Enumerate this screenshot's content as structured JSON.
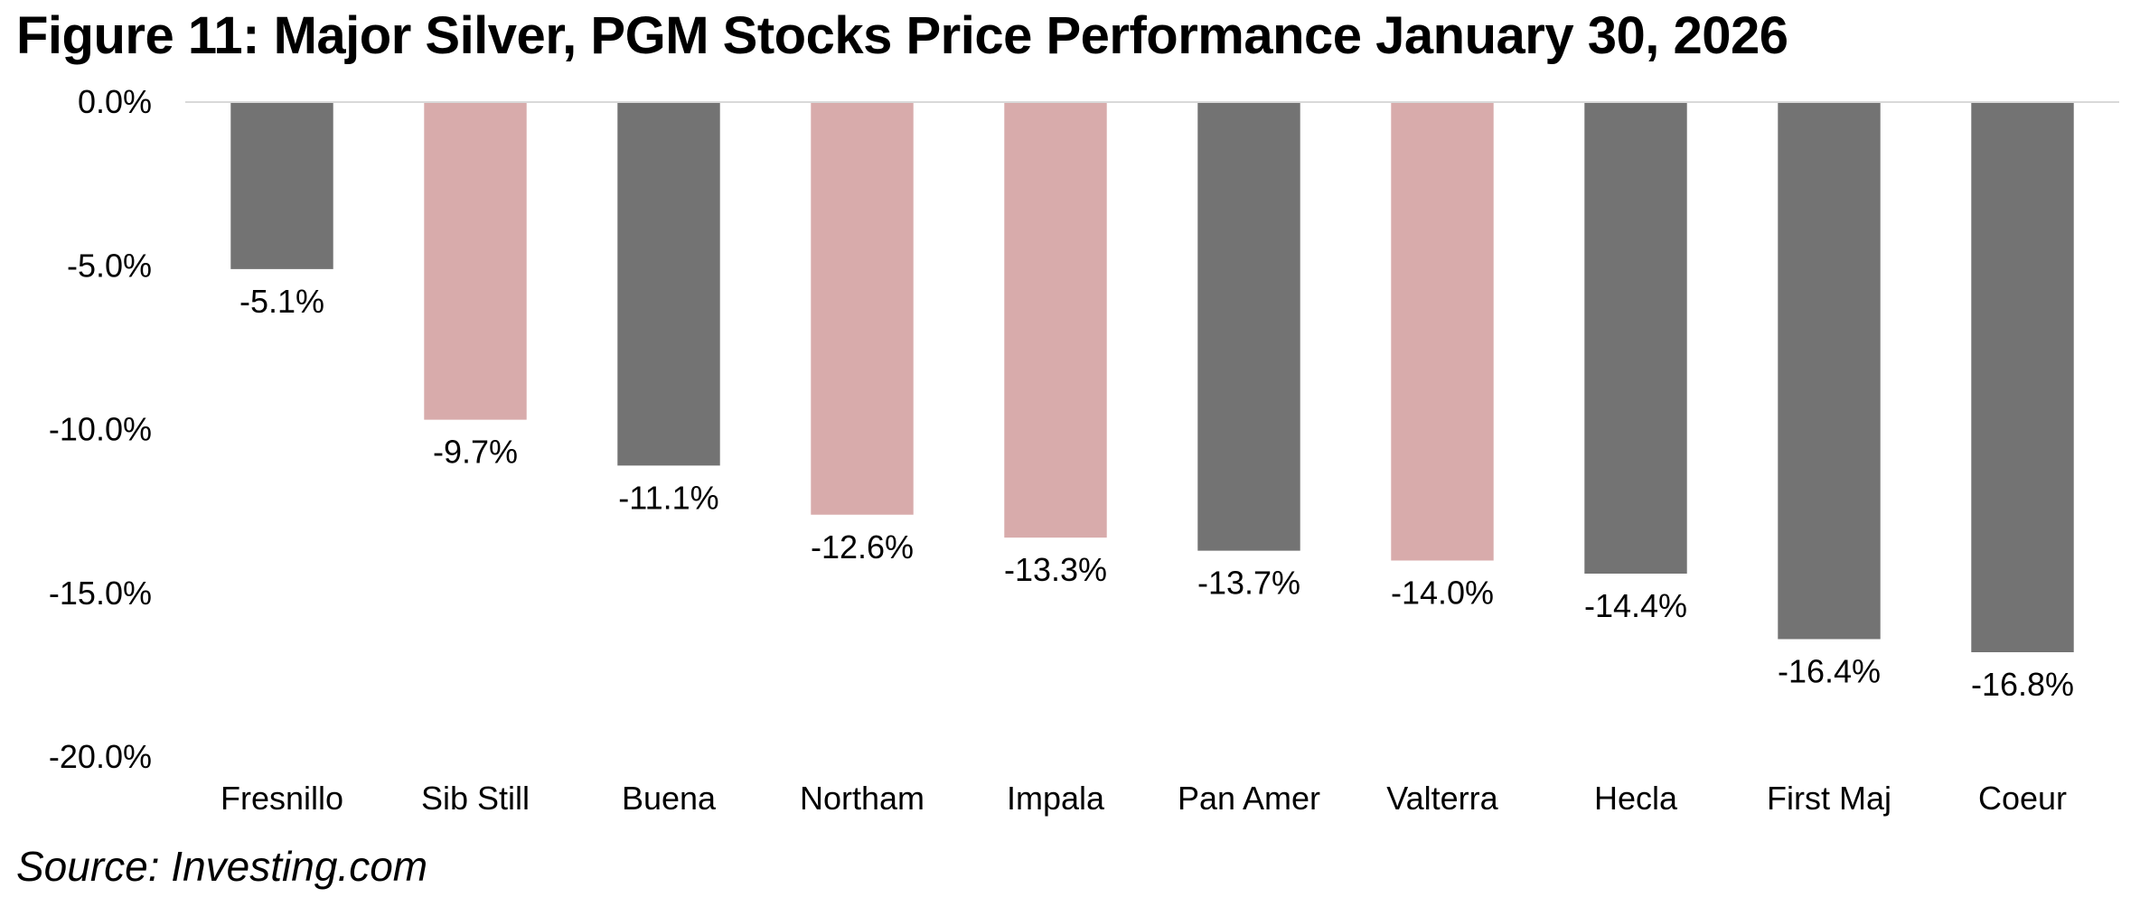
{
  "header": {
    "title": "Figure 11: Major Silver, PGM Stocks Price Performance January 30, 2026"
  },
  "footer": {
    "source": "Source: Investing.com"
  },
  "colors": {
    "dark_bar": "#737373",
    "pink_bar": "#d8abab",
    "axis_line": "#d9d9d9"
  },
  "chart_data": {
    "type": "bar",
    "title": "Figure 11: Major Silver, PGM Stocks Price Performance January 30, 2026",
    "xlabel": "",
    "ylabel": "",
    "ylim": [
      -20,
      0
    ],
    "yticks": [
      0,
      -5,
      -10,
      -15,
      -20
    ],
    "ytick_labels": [
      "0.0%",
      "-5.0%",
      "-10.0%",
      "-15.0%",
      "-20.0%"
    ],
    "categories": [
      "Fresnillo",
      "Sib Still",
      "Buena",
      "Northam",
      "Impala",
      "Pan Amer",
      "Valterra",
      "Hecla",
      "First Maj",
      "Coeur"
    ],
    "values": [
      -5.1,
      -9.7,
      -11.1,
      -12.6,
      -13.3,
      -13.7,
      -14.0,
      -14.4,
      -16.4,
      -16.8
    ],
    "data_labels": [
      "-5.1%",
      "-9.7%",
      "-11.1%",
      "-12.6%",
      "-13.3%",
      "-13.7%",
      "-14.0%",
      "-14.4%",
      "-16.4%",
      "-16.8%"
    ],
    "bar_groups": [
      "silver",
      "pgm",
      "silver",
      "pgm",
      "pgm",
      "silver",
      "pgm",
      "silver",
      "silver",
      "silver"
    ],
    "grid": false
  }
}
